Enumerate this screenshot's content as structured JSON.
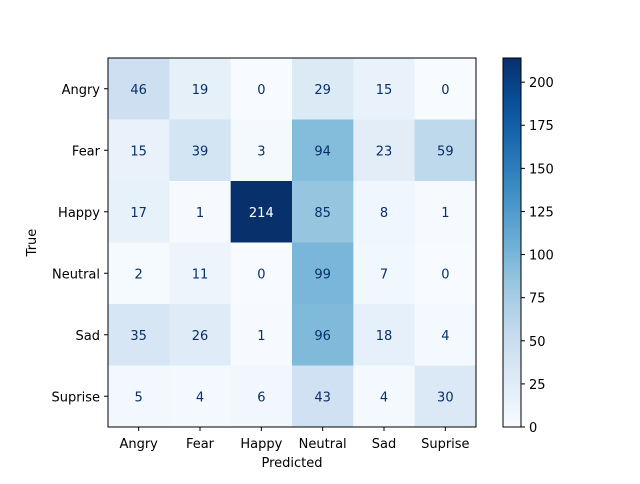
{
  "chart_data": {
    "type": "heatmap",
    "title": "",
    "xlabel": "Predicted",
    "ylabel": "True",
    "x_categories": [
      "Angry",
      "Fear",
      "Happy",
      "Neutral",
      "Sad",
      "Suprise"
    ],
    "y_categories": [
      "Angry",
      "Fear",
      "Happy",
      "Neutral",
      "Sad",
      "Suprise"
    ],
    "values": [
      [
        46,
        19,
        0,
        29,
        15,
        0
      ],
      [
        15,
        39,
        3,
        94,
        23,
        59
      ],
      [
        17,
        1,
        214,
        85,
        8,
        1
      ],
      [
        2,
        11,
        0,
        99,
        7,
        0
      ],
      [
        35,
        26,
        1,
        96,
        18,
        4
      ],
      [
        5,
        4,
        6,
        43,
        4,
        30
      ]
    ],
    "colormap": "Blues",
    "color_range": [
      0,
      214
    ],
    "colorbar_ticks": [
      0,
      25,
      50,
      75,
      100,
      125,
      150,
      175,
      200
    ],
    "text_color_dark": "#08306b",
    "text_color_light": "#ffffff"
  }
}
